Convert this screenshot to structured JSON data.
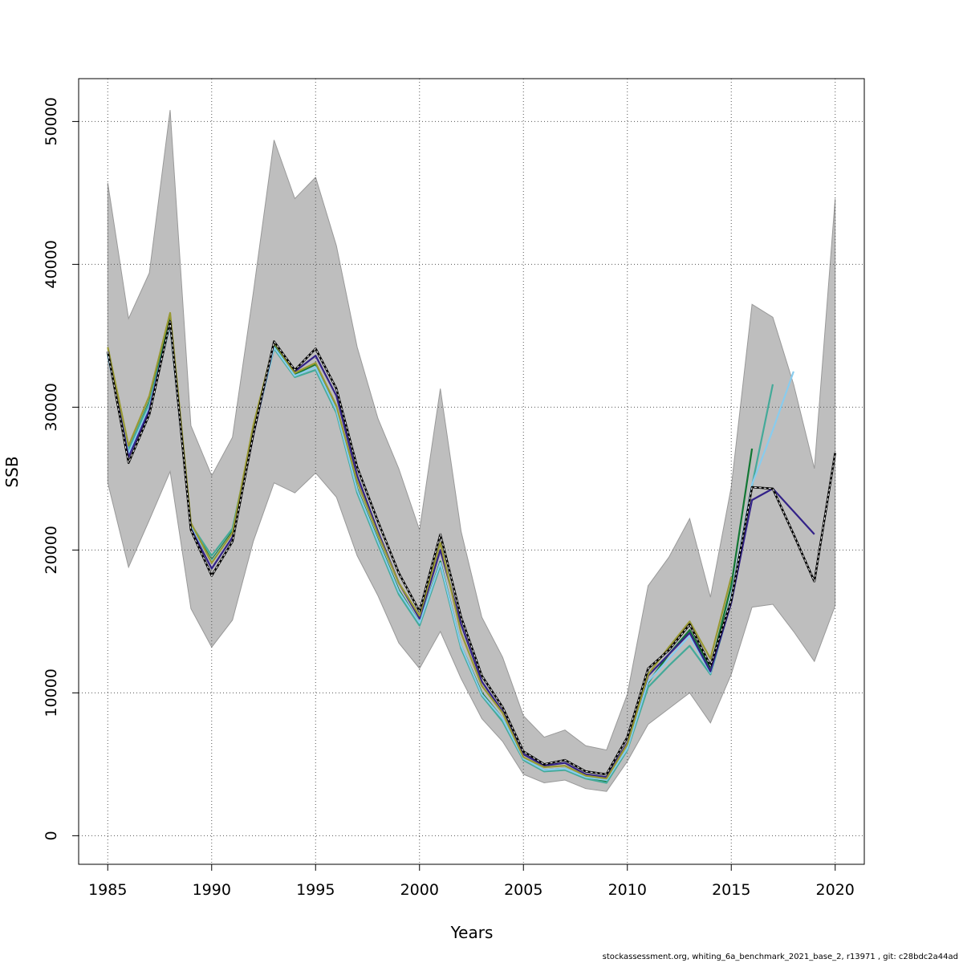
{
  "footer_text": "stockassessment.org, whiting_6a_benchmark_2021_base_2, r13971 , git: c28bdc2a44ad",
  "chart_data": {
    "type": "line",
    "title": "",
    "xlabel": "Years",
    "ylabel": "SSB",
    "xlim": [
      1983.6,
      2021.4
    ],
    "ylim": [
      -2000,
      53000
    ],
    "x_ticks": [
      1985,
      1990,
      1995,
      2000,
      2005,
      2010,
      2015,
      2020
    ],
    "x_tick_labels": [
      "1985",
      "1990",
      "1995",
      "2000",
      "2005",
      "2010",
      "2015",
      "2020"
    ],
    "y_ticks": [
      0,
      10000,
      20000,
      30000,
      40000,
      50000
    ],
    "y_tick_labels": [
      "0",
      "10000",
      "20000",
      "30000",
      "40000",
      "50000"
    ],
    "grid": true,
    "confidence_band": {
      "color": "#bebebe",
      "edge_color": "#999999",
      "x": [
        1985,
        1986,
        1987,
        1988,
        1989,
        1990,
        1991,
        1992,
        1993,
        1994,
        1995,
        1996,
        1997,
        1998,
        1999,
        2000,
        2001,
        2002,
        2003,
        2004,
        2005,
        2006,
        2007,
        2008,
        2009,
        2010,
        2011,
        2012,
        2013,
        2014,
        2015,
        2016,
        2017,
        2018,
        2019,
        2020
      ],
      "lower": [
        24700,
        18800,
        22100,
        25500,
        15900,
        13200,
        15100,
        20600,
        24700,
        24000,
        25400,
        23700,
        19600,
        16800,
        13500,
        11700,
        14300,
        11000,
        8200,
        6600,
        4300,
        3700,
        3900,
        3300,
        3100,
        5200,
        7800,
        8900,
        10000,
        7900,
        11300,
        16000,
        16200,
        14300,
        12200,
        16100
      ],
      "upper": [
        45700,
        36200,
        39400,
        50800,
        28700,
        25200,
        27900,
        38000,
        48700,
        44600,
        46100,
        41300,
        34200,
        29200,
        25700,
        21400,
        31300,
        21300,
        15300,
        12500,
        8400,
        6900,
        7400,
        6300,
        6000,
        9900,
        17500,
        19500,
        22200,
        16700,
        24400,
        37200,
        36300,
        31600,
        25700,
        44600
      ]
    },
    "series": [
      {
        "role": "retro-peel-2015",
        "color": "#117733",
        "width": 2.2,
        "x": [
          1985,
          1986,
          1987,
          1988,
          1989,
          1990,
          1991,
          1992,
          1993,
          1994,
          1995,
          1996,
          1997,
          1998,
          1999,
          2000,
          2001,
          2002,
          2003,
          2004,
          2005,
          2006,
          2007,
          2008,
          2009,
          2010,
          2011,
          2012,
          2013,
          2014,
          2015,
          2016
        ],
        "values": [
          33800,
          27000,
          30400,
          36200,
          21700,
          19300,
          21300,
          28300,
          34300,
          32300,
          33000,
          29900,
          24300,
          20700,
          17200,
          14900,
          19200,
          13300,
          10000,
          8200,
          5400,
          4600,
          4700,
          4100,
          3800,
          6100,
          10700,
          12700,
          14400,
          11700,
          17500,
          27100
        ]
      },
      {
        "role": "retro-peel-2016",
        "color": "#44aa99",
        "width": 2.2,
        "x": [
          1985,
          1986,
          1987,
          1988,
          1989,
          1990,
          1991,
          1992,
          1993,
          1994,
          1995,
          1996,
          1997,
          1998,
          1999,
          2000,
          2001,
          2002,
          2003,
          2004,
          2005,
          2006,
          2007,
          2008,
          2009,
          2010,
          2011,
          2012,
          2013,
          2014,
          2015,
          2016,
          2017
        ],
        "values": [
          33700,
          27100,
          30300,
          35800,
          21800,
          19600,
          21500,
          28200,
          34100,
          32100,
          32600,
          29600,
          24000,
          20400,
          16900,
          14700,
          18900,
          13100,
          9800,
          8000,
          5300,
          4500,
          4600,
          4000,
          3700,
          6000,
          10400,
          11900,
          13300,
          11300,
          16400,
          24500,
          31600
        ]
      },
      {
        "role": "retro-peel-2017",
        "color": "#88ccee",
        "width": 2.2,
        "x": [
          1985,
          1986,
          1987,
          1988,
          1989,
          1990,
          1991,
          1992,
          1993,
          1994,
          1995,
          1996,
          1997,
          1998,
          1999,
          2000,
          2001,
          2002,
          2003,
          2004,
          2005,
          2006,
          2007,
          2008,
          2009,
          2010,
          2011,
          2012,
          2013,
          2014,
          2015,
          2016,
          2017,
          2018
        ],
        "values": [
          33600,
          26800,
          30000,
          35700,
          21600,
          19200,
          21200,
          28100,
          34200,
          32200,
          32800,
          29800,
          24200,
          20600,
          17100,
          14900,
          19100,
          13300,
          9900,
          8200,
          5400,
          4600,
          4700,
          4100,
          3900,
          6100,
          10800,
          12400,
          14000,
          11400,
          16800,
          24600,
          28400,
          32500
        ]
      },
      {
        "role": "retro-peel-2018",
        "color": "#332288",
        "width": 2.2,
        "x": [
          1985,
          1986,
          1987,
          1988,
          1989,
          1990,
          1991,
          1992,
          1993,
          1994,
          1995,
          1996,
          1997,
          1998,
          1999,
          2000,
          2001,
          2002,
          2003,
          2004,
          2005,
          2006,
          2007,
          2008,
          2009,
          2010,
          2011,
          2012,
          2013,
          2014,
          2015,
          2016,
          2017,
          2018,
          2019
        ],
        "values": [
          33900,
          26500,
          29800,
          36000,
          21500,
          18700,
          20900,
          28000,
          34500,
          32500,
          33600,
          30800,
          25200,
          21300,
          17700,
          15200,
          20000,
          14800,
          10800,
          8700,
          5700,
          4900,
          5100,
          4300,
          4100,
          6500,
          11200,
          12700,
          14200,
          11500,
          16300,
          23500,
          24300,
          22700,
          21100
        ]
      },
      {
        "role": "retro-peel-2014",
        "color": "#999933",
        "width": 2.2,
        "x": [
          1985,
          1986,
          1987,
          1988,
          1989,
          1990,
          1991,
          1992,
          1993,
          1994,
          1995,
          1996,
          1997,
          1998,
          1999,
          2000,
          2001,
          2002,
          2003,
          2004,
          2005,
          2006,
          2007,
          2008,
          2009,
          2010,
          2011,
          2012,
          2013,
          2014,
          2015
        ],
        "values": [
          34200,
          27300,
          30800,
          36600,
          21900,
          19100,
          21200,
          28700,
          34500,
          32400,
          33100,
          30100,
          24800,
          21100,
          17700,
          15400,
          20500,
          14200,
          10500,
          8600,
          5500,
          4800,
          4900,
          4200,
          4000,
          6400,
          11300,
          13200,
          15000,
          12400,
          18100
        ]
      },
      {
        "role": "full-assessment",
        "color": "#000000",
        "width": 2.2,
        "x": [
          1985,
          1986,
          1987,
          1988,
          1989,
          1990,
          1991,
          1992,
          1993,
          1994,
          1995,
          1996,
          1997,
          1998,
          1999,
          2000,
          2001,
          2002,
          2003,
          2004,
          2005,
          2006,
          2007,
          2008,
          2009,
          2010,
          2011,
          2012,
          2013,
          2014,
          2015,
          2016,
          2017,
          2018,
          2019,
          2020
        ],
        "values": [
          33900,
          26100,
          29500,
          36000,
          21400,
          18200,
          20600,
          28100,
          34600,
          32600,
          34100,
          31300,
          25800,
          22000,
          18400,
          15700,
          21100,
          15300,
          11200,
          9000,
          5900,
          5000,
          5300,
          4500,
          4300,
          6900,
          11700,
          13000,
          14800,
          11900,
          16500,
          24400,
          24300,
          21100,
          17800,
          26800
        ]
      }
    ]
  }
}
